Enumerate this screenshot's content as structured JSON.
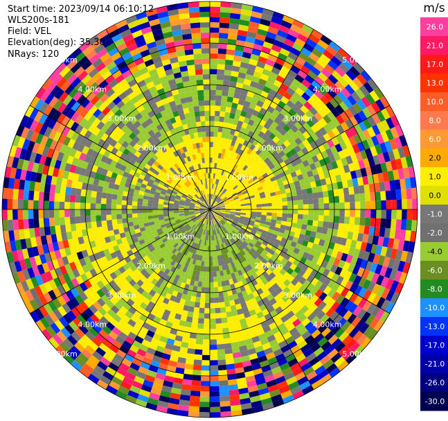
{
  "header": {
    "start_time": "Start time: 2023/09/14 06:10:12",
    "instrument": "WLS200s-181",
    "field": "Field: VEL",
    "elevation": "Elevation(deg): 35.30",
    "nrays": "NRays: 120"
  },
  "colorbar": {
    "unit": "m/s",
    "ticks": [
      "26.0",
      "21.0",
      "17.0",
      "13.0",
      "10.0",
      "8.0",
      "6.0",
      "2.0",
      "1.0",
      "0.0",
      "-1.0",
      "-2.0",
      "-4.0",
      "-6.0",
      "-8.0",
      "-10.0",
      "-13.0",
      "-17.0",
      "-21.0",
      "-26.0",
      "-30.0"
    ],
    "colors": [
      "#ff3fa0",
      "#ff1a66",
      "#ff1a1a",
      "#ff3300",
      "#ff5c26",
      "#ff7a4d",
      "#ff9933",
      "#ffaa00",
      "#ffee00",
      "#e0e000",
      "#777777",
      "#707070",
      "#99cc33",
      "#6b8e23",
      "#228b22",
      "#1e90ff",
      "#0033ff",
      "#0000cd",
      "#0000aa",
      "#000080",
      "#000050"
    ]
  },
  "range_labels": [
    "1.00km",
    "2.00km",
    "3.00km",
    "4.00km",
    "5.00km"
  ],
  "chart_data": {
    "type": "heatmap",
    "projection": "polar PPI",
    "field": "VEL",
    "unit": "m/s",
    "n_rays": 120,
    "range_rings_km": [
      1,
      2,
      3,
      4,
      5
    ],
    "max_range_km": 5,
    "color_scale_min": -30,
    "color_scale_max": 26
  }
}
